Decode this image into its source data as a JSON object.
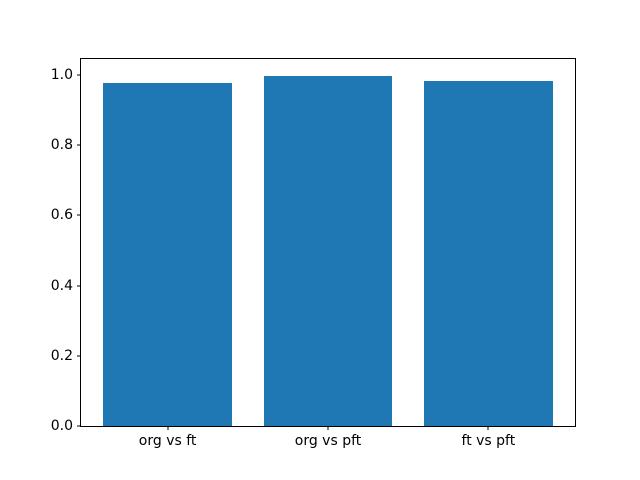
{
  "figure": {
    "background_color": "#ffffff",
    "frame_color": "#000000"
  },
  "chart_data": {
    "type": "bar",
    "title": "",
    "xlabel": "",
    "ylabel": "",
    "categories": [
      "org vs ft",
      "org vs pft",
      "ft vs pft"
    ],
    "values": [
      0.977,
      0.997,
      0.982
    ],
    "bar_color": "#1f77b4",
    "bar_width": 0.8,
    "xlim": [
      -0.54,
      2.54
    ],
    "ylim": [
      0,
      1.045
    ],
    "yticks": [
      0.0,
      0.2,
      0.4,
      0.6,
      0.8,
      1.0
    ],
    "ytick_format_decimals": 1,
    "grid": false,
    "legend": null
  }
}
